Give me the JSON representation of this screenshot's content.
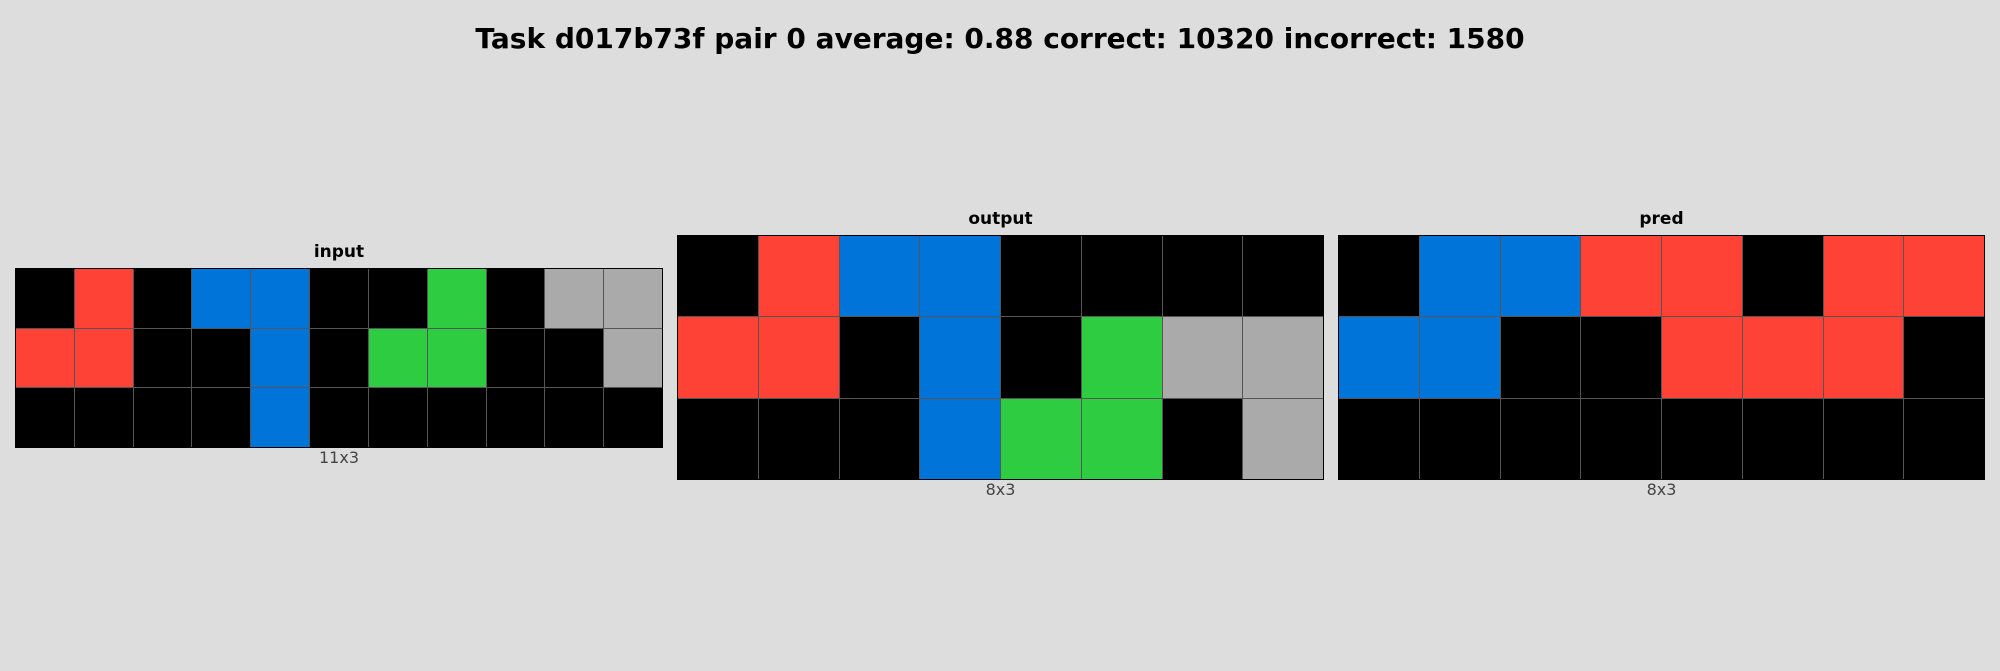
{
  "title": "Task d017b73f pair 0 average: 0.88 correct: 10320 incorrect: 1580",
  "palette": {
    "0": "#000000",
    "1": "#0074d9",
    "2": "#ff4136",
    "3": "#2ecc40",
    "5": "#aaaaaa"
  },
  "panels": [
    {
      "label": "input",
      "dims": "11x3",
      "grid": [
        [
          0,
          2,
          0,
          1,
          1,
          0,
          0,
          3,
          0,
          5,
          5
        ],
        [
          2,
          2,
          0,
          0,
          1,
          0,
          3,
          3,
          0,
          0,
          5
        ],
        [
          0,
          0,
          0,
          0,
          1,
          0,
          0,
          0,
          0,
          0,
          0
        ]
      ]
    },
    {
      "label": "output",
      "dims": "8x3",
      "grid": [
        [
          0,
          2,
          1,
          1,
          0,
          0,
          0,
          0
        ],
        [
          2,
          2,
          0,
          1,
          0,
          3,
          5,
          5
        ],
        [
          0,
          0,
          0,
          1,
          3,
          3,
          0,
          5
        ]
      ]
    },
    {
      "label": "pred",
      "dims": "8x3",
      "grid": [
        [
          0,
          1,
          1,
          2,
          2,
          0,
          2,
          2
        ],
        [
          1,
          1,
          0,
          0,
          2,
          2,
          2,
          0
        ],
        [
          0,
          0,
          0,
          0,
          0,
          0,
          0,
          0
        ]
      ]
    }
  ]
}
